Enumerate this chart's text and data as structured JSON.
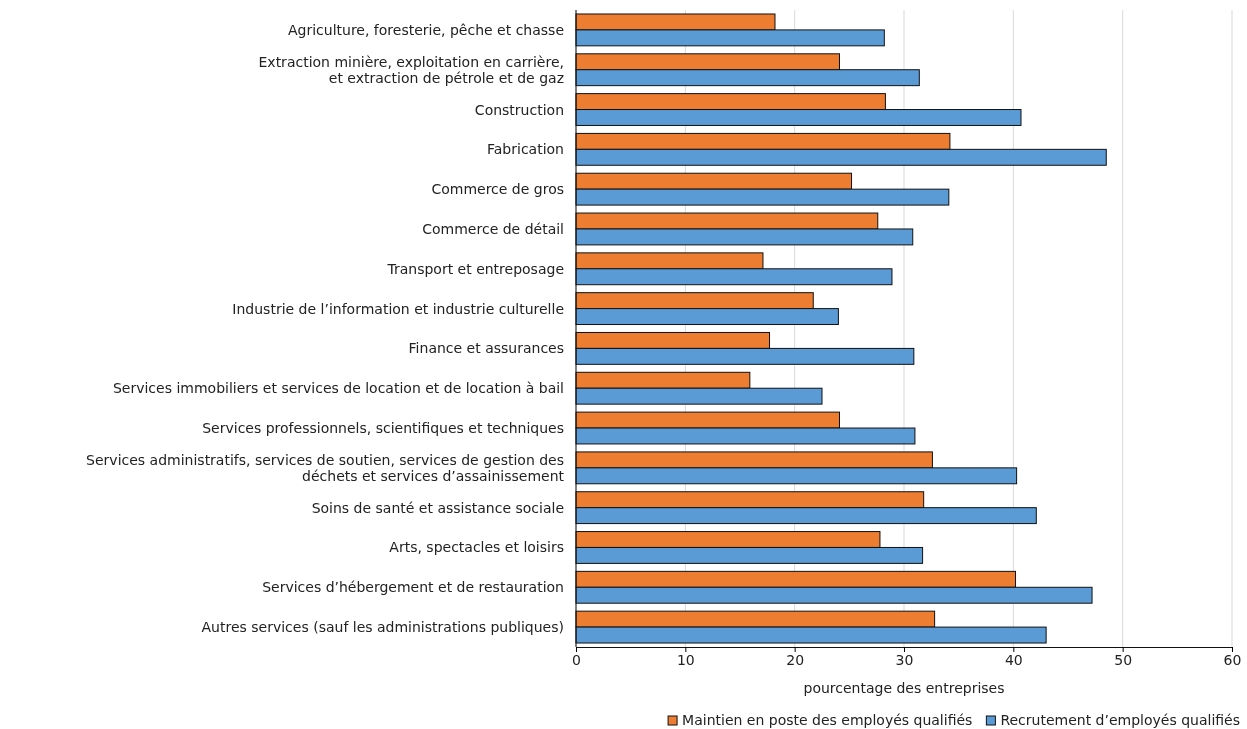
{
  "chart_data": {
    "type": "bar",
    "orientation": "horizontal",
    "xlabel": "pourcentage des entreprises",
    "categories": [
      "Agriculture, foresterie, pêche et chasse",
      "Extraction minière, exploitation en carrière,\net extraction de pétrole et de gaz",
      "Construction",
      "Fabrication",
      "Commerce de gros",
      "Commerce de détail",
      "Transport et entreposage",
      "Industrie de l’information et industrie culturelle",
      "Finance et assurances",
      "Services immobiliers et services de location et de location à bail",
      "Services professionnels, scientifiques et techniques",
      "Services administratifs, services de soutien, services de gestion des\ndéchets et services d’assainissement",
      "Soins de santé et assistance sociale",
      "Arts, spectacles et loisirs",
      "Services d’hébergement et de restauration",
      "Autres services (sauf les administrations publiques)"
    ],
    "series": [
      {
        "name": "Maintien en poste des employés qualifiés",
        "color": "#ed7d31",
        "values": [
          18.2,
          24.1,
          28.3,
          34.2,
          25.2,
          27.6,
          17.1,
          21.7,
          17.7,
          15.9,
          24.1,
          32.6,
          31.8,
          27.8,
          40.2,
          32.8
        ]
      },
      {
        "name": "Recrutement d’employés qualifiés",
        "color": "#5b9bd5",
        "values": [
          28.2,
          31.4,
          40.7,
          48.5,
          34.1,
          30.8,
          28.9,
          24.0,
          30.9,
          22.5,
          31.0,
          40.3,
          42.1,
          31.7,
          47.2,
          43.0
        ]
      }
    ],
    "xlim": [
      0,
      60
    ],
    "xticks": [
      0,
      10,
      20,
      30,
      40,
      50,
      60
    ],
    "grid": "x",
    "legend": "bottom"
  }
}
